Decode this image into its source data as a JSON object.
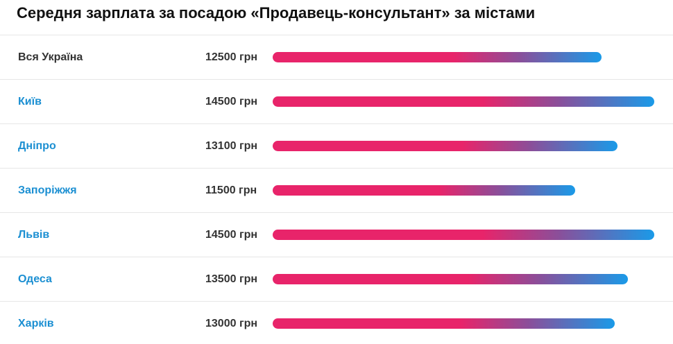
{
  "title": "Середня зарплата за посадою «Продавець-консультант» за містами",
  "colors": {
    "link": "#1b8fd2",
    "bar_start": "#e8246a",
    "bar_end": "#1a9ae8"
  },
  "max_salary": 14500,
  "rows": [
    {
      "city": "Вся Україна",
      "salary": "12500 грн",
      "value": 12500,
      "link": false
    },
    {
      "city": "Київ",
      "salary": "14500 грн",
      "value": 14500,
      "link": true
    },
    {
      "city": "Дніпро",
      "salary": "13100 грн",
      "value": 13100,
      "link": true
    },
    {
      "city": "Запоріжжя",
      "salary": "11500 грн",
      "value": 11500,
      "link": true
    },
    {
      "city": "Львів",
      "salary": "14500 грн",
      "value": 14500,
      "link": true
    },
    {
      "city": "Одеса",
      "salary": "13500 грн",
      "value": 13500,
      "link": true
    },
    {
      "city": "Харків",
      "salary": "13000 грн",
      "value": 13000,
      "link": true
    }
  ]
}
